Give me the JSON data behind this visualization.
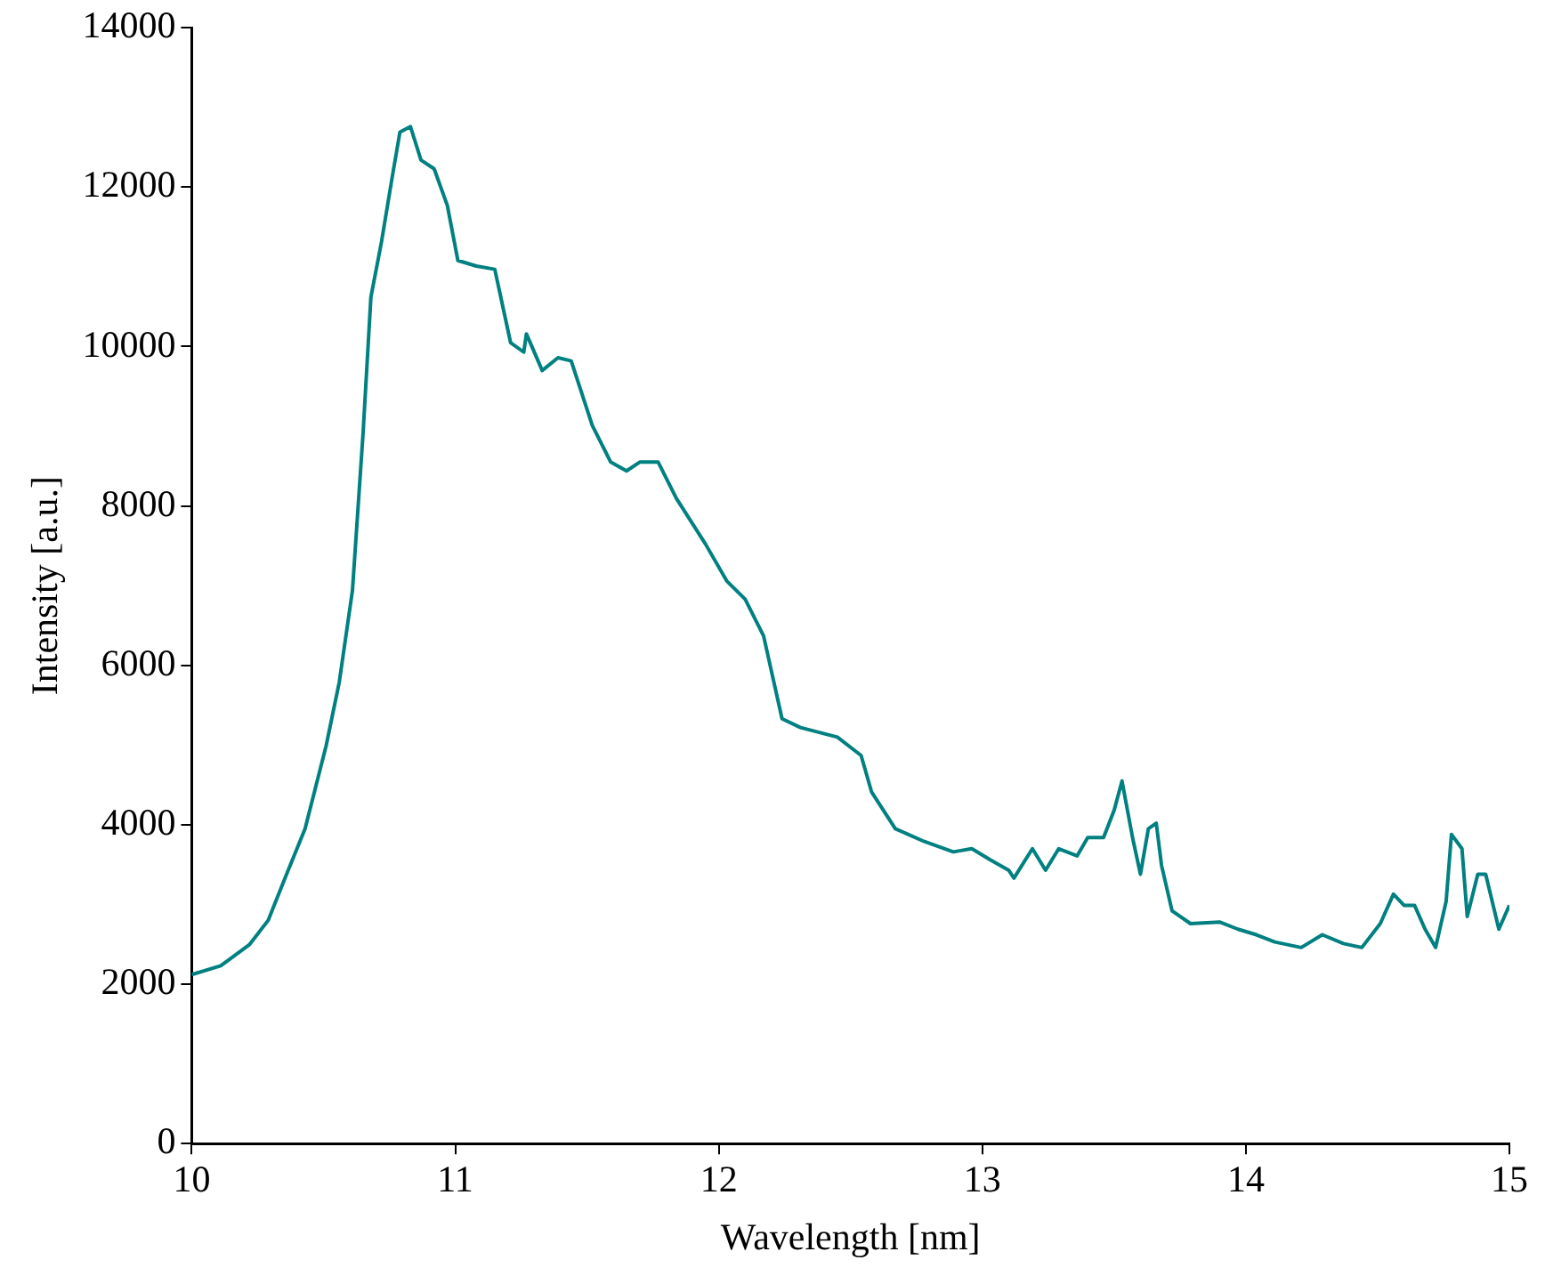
{
  "chart_data": {
    "type": "line",
    "xlabel": "Wavelength [nm]",
    "ylabel": "Intensity [a.u.]",
    "xlim": [
      10,
      15
    ],
    "xticks": [
      10,
      11,
      12,
      13,
      14,
      15
    ],
    "ylim": [
      0,
      14000
    ],
    "yticks": [
      0,
      2000,
      4000,
      6000,
      8000,
      10000,
      12000,
      14000
    ],
    "grid": false,
    "legend": false,
    "marker": "none",
    "line_style": "solid",
    "series": [
      {
        "color": "#008080",
        "x": [
          10,
          10.11,
          10.22,
          10.29,
          10.36,
          10.43,
          10.51,
          10.56,
          10.61,
          10.65,
          10.68,
          10.72,
          10.76,
          10.79,
          10.83,
          10.87,
          10.92,
          10.97,
          11.01,
          11.08,
          11.15,
          11.21,
          11.26,
          11.27,
          11.33,
          11.39,
          11.44,
          11.52,
          11.59,
          11.65,
          11.7,
          11.77,
          11.84,
          11.95,
          12.03,
          12.1,
          12.17,
          12.24,
          12.31,
          12.45,
          12.54,
          12.58,
          12.67,
          12.78,
          12.89,
          12.96,
          13.03,
          13.1,
          13.12,
          13.19,
          13.24,
          13.29,
          13.36,
          13.4,
          13.46,
          13.5,
          13.53,
          13.57,
          13.6,
          13.63,
          13.66,
          13.68,
          13.72,
          13.79,
          13.9,
          13.97,
          14.04,
          14.11,
          14.21,
          14.29,
          14.37,
          14.44,
          14.51,
          14.56,
          14.6,
          14.64,
          14.68,
          14.72,
          14.76,
          14.78,
          14.82,
          14.84,
          14.88,
          14.91,
          14.96,
          15
        ],
        "values": [
          2120,
          2230,
          2500,
          2800,
          3380,
          3950,
          4990,
          5790,
          6940,
          8900,
          10620,
          11310,
          12110,
          12690,
          12760,
          12340,
          12230,
          11770,
          11080,
          11010,
          10970,
          10050,
          9930,
          10160,
          9700,
          9860,
          9820,
          9010,
          8550,
          8440,
          8550,
          8550,
          8090,
          7520,
          7060,
          6830,
          6370,
          5330,
          5220,
          5100,
          4870,
          4410,
          3950,
          3790,
          3660,
          3700,
          3560,
          3430,
          3330,
          3700,
          3430,
          3700,
          3610,
          3840,
          3840,
          4180,
          4550,
          3840,
          3380,
          3950,
          4020,
          3490,
          2920,
          2760,
          2780,
          2690,
          2620,
          2530,
          2460,
          2620,
          2510,
          2460,
          2760,
          3130,
          2990,
          2990,
          2690,
          2460,
          3040,
          3880,
          3700,
          2850,
          3380,
          3380,
          2690,
          2990
        ]
      }
    ]
  }
}
